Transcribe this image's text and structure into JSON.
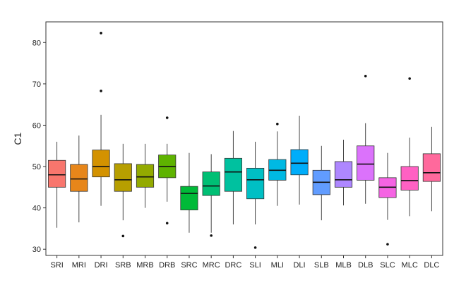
{
  "chart_data": {
    "type": "boxplot",
    "ylabel": "C1",
    "xlabel": "",
    "ylim": [
      28.5,
      85
    ],
    "yticks": [
      30,
      40,
      50,
      60,
      70,
      80
    ],
    "grid": false,
    "legend": "none",
    "categories": [
      "SRI",
      "MRI",
      "DRI",
      "SRB",
      "MRB",
      "DRB",
      "SRC",
      "MRC",
      "DRC",
      "SLI",
      "MLI",
      "DLI",
      "SLB",
      "MLB",
      "DLB",
      "SLC",
      "MLC",
      "DLC"
    ],
    "colors": [
      "#f8766d",
      "#e7861a",
      "#d39200",
      "#b79f00",
      "#93aa00",
      "#5eb300",
      "#00ba38",
      "#00bf74",
      "#00c19f",
      "#00bfc4",
      "#00b9e3",
      "#00adfa",
      "#619cff",
      "#ae87ff",
      "#db72fb",
      "#f564e3",
      "#ff61c3",
      "#ff699c"
    ],
    "boxes": [
      {
        "category": "SRI",
        "min": 35.2,
        "q1": 45.0,
        "median": 48.0,
        "q3": 51.5,
        "max": 56.0,
        "outliers": []
      },
      {
        "category": "MRI",
        "min": 36.5,
        "q1": 44.0,
        "median": 47.0,
        "q3": 50.5,
        "max": 57.5,
        "outliers": []
      },
      {
        "category": "DRI",
        "min": 40.5,
        "q1": 47.5,
        "median": 50.0,
        "q3": 54.0,
        "max": 62.5,
        "outliers": [
          68.3,
          82.3
        ]
      },
      {
        "category": "SRB",
        "min": 37.0,
        "q1": 44.0,
        "median": 46.8,
        "q3": 50.7,
        "max": 55.5,
        "outliers": [
          33.2
        ]
      },
      {
        "category": "MRB",
        "min": 40.0,
        "q1": 45.0,
        "median": 47.5,
        "q3": 50.5,
        "max": 55.5,
        "outliers": []
      },
      {
        "category": "DRB",
        "min": 41.5,
        "q1": 47.3,
        "median": 50.0,
        "q3": 52.8,
        "max": 55.5,
        "outliers": [
          36.3,
          61.8
        ]
      },
      {
        "category": "SRC",
        "min": 34.0,
        "q1": 39.5,
        "median": 43.5,
        "q3": 45.2,
        "max": 53.3,
        "outliers": []
      },
      {
        "category": "MRC",
        "min": 34.0,
        "q1": 43.0,
        "median": 45.3,
        "q3": 48.7,
        "max": 53.0,
        "outliers": [
          33.3
        ]
      },
      {
        "category": "DRC",
        "min": 36.0,
        "q1": 44.0,
        "median": 48.7,
        "q3": 52.0,
        "max": 58.6,
        "outliers": []
      },
      {
        "category": "SLI",
        "min": 36.0,
        "q1": 42.2,
        "median": 46.8,
        "q3": 49.6,
        "max": 56.0,
        "outliers": [
          30.4
        ]
      },
      {
        "category": "MLI",
        "min": 40.5,
        "q1": 46.7,
        "median": 49.1,
        "q3": 51.7,
        "max": 58.5,
        "outliers": [
          60.3
        ]
      },
      {
        "category": "DLI",
        "min": 40.8,
        "q1": 48.0,
        "median": 50.8,
        "q3": 54.1,
        "max": 62.3,
        "outliers": []
      },
      {
        "category": "SLB",
        "min": 37.0,
        "q1": 43.2,
        "median": 46.2,
        "q3": 49.1,
        "max": 55.0,
        "outliers": []
      },
      {
        "category": "MLB",
        "min": 40.6,
        "q1": 45.0,
        "median": 46.8,
        "q3": 51.2,
        "max": 56.5,
        "outliers": []
      },
      {
        "category": "DLB",
        "min": 41.0,
        "q1": 46.7,
        "median": 50.6,
        "q3": 55.0,
        "max": 60.5,
        "outliers": [
          71.9
        ]
      },
      {
        "category": "SLC",
        "min": 37.1,
        "q1": 42.5,
        "median": 45.0,
        "q3": 47.3,
        "max": 53.3,
        "outliers": [
          31.2
        ]
      },
      {
        "category": "MLC",
        "min": 38.0,
        "q1": 44.3,
        "median": 46.6,
        "q3": 50.0,
        "max": 57.0,
        "outliers": [
          71.3
        ]
      },
      {
        "category": "DLC",
        "min": 39.2,
        "q1": 46.4,
        "median": 48.5,
        "q3": 53.1,
        "max": 59.6,
        "outliers": []
      }
    ]
  }
}
